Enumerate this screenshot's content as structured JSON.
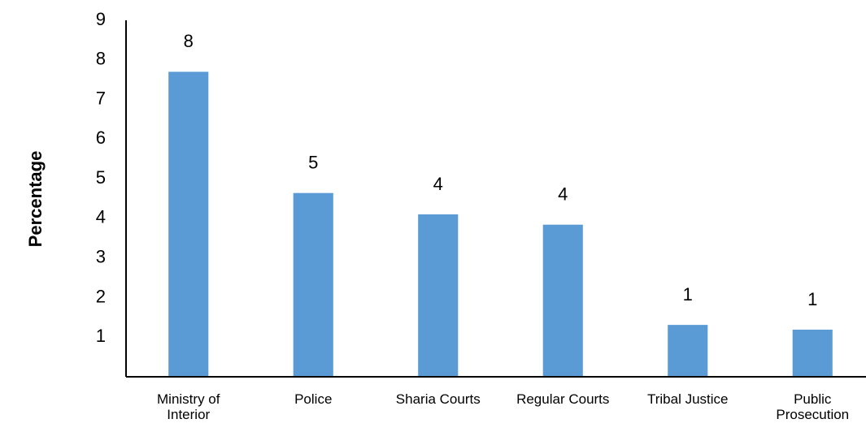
{
  "chart_data": {
    "type": "bar",
    "y_label": "Percentage",
    "categories": [
      "Ministry of Interior",
      "Police",
      "Sharia Courts",
      "Regular Courts",
      "Tribal Justice",
      "Public Prosecution"
    ],
    "values": [
      7.7,
      4.64,
      4.1,
      3.84,
      1.31,
      1.19
    ],
    "value_labels": [
      "8",
      "5",
      "4",
      "4",
      "1",
      "1"
    ],
    "color": "#5b9bd5",
    "ylim": [
      0,
      9
    ],
    "yticks": [
      1,
      2,
      3,
      4,
      5,
      6,
      7,
      8,
      9
    ],
    "grid": false
  }
}
